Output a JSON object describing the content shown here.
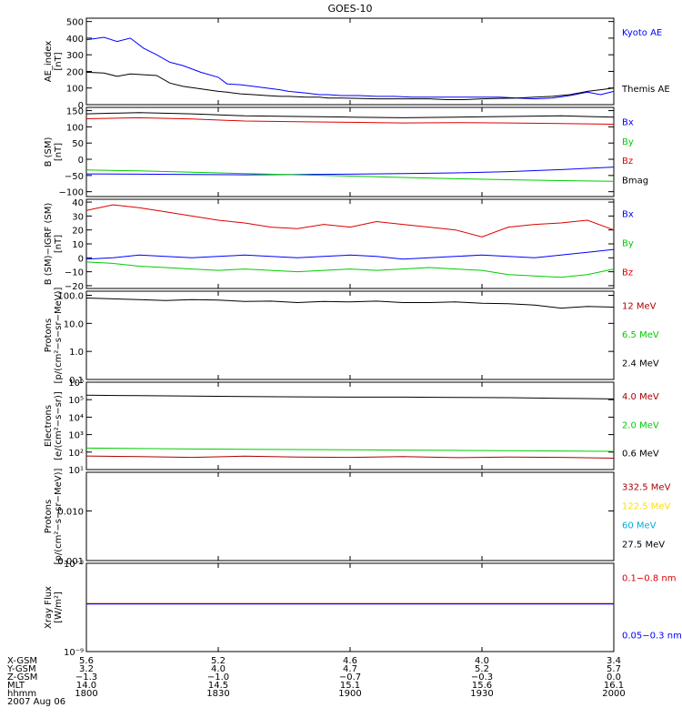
{
  "chart_data": [
    {
      "type": "line",
      "title": "GOES-10",
      "ylabel": [
        "AE_index",
        "[nT]"
      ],
      "ylim": [
        0,
        520
      ],
      "yticks": [
        0,
        100,
        200,
        300,
        400,
        500
      ],
      "ytick_labels": [
        "0",
        "100",
        "200",
        "300",
        "400",
        "500"
      ],
      "series": [
        {
          "name": "Kyoto AE",
          "color": "#0000ff",
          "x": [
            0,
            4,
            7,
            10,
            13,
            16,
            19,
            22,
            26,
            30,
            32,
            35,
            38,
            41,
            44,
            46,
            50,
            53,
            55,
            58,
            62,
            66,
            70,
            74,
            78,
            82,
            86,
            90,
            94,
            98,
            102,
            106,
            110,
            114,
            117,
            120
          ],
          "y": [
            390,
            405,
            380,
            400,
            340,
            300,
            255,
            235,
            195,
            165,
            125,
            120,
            110,
            100,
            90,
            80,
            70,
            60,
            60,
            55,
            55,
            50,
            50,
            45,
            45,
            45,
            45,
            45,
            45,
            40,
            35,
            40,
            55,
            75,
            60,
            80
          ]
        },
        {
          "name": "Themis AE",
          "color": "#000000",
          "x": [
            0,
            4,
            7,
            10,
            13,
            16,
            19,
            22,
            26,
            30,
            32,
            35,
            38,
            41,
            44,
            46,
            50,
            53,
            55,
            58,
            62,
            66,
            70,
            74,
            78,
            82,
            86,
            90,
            94,
            98,
            102,
            106,
            110,
            114,
            117,
            120
          ],
          "y": [
            195,
            190,
            170,
            185,
            180,
            175,
            130,
            110,
            95,
            80,
            75,
            65,
            60,
            55,
            50,
            50,
            45,
            45,
            40,
            40,
            38,
            35,
            35,
            35,
            35,
            30,
            30,
            35,
            38,
            40,
            45,
            50,
            60,
            80,
            90,
            100
          ]
        }
      ]
    },
    {
      "type": "line",
      "ylabel": [
        "B (SM)",
        "[nT]"
      ],
      "ylim": [
        -115,
        160
      ],
      "yticks": [
        -100,
        -50,
        0,
        50,
        100,
        150
      ],
      "ytick_labels": [
        "−100",
        "−50",
        "0",
        "50",
        "100",
        "150"
      ],
      "series": [
        {
          "name": "Bx",
          "color": "#0000ff",
          "x": [
            0,
            20,
            40,
            60,
            80,
            100,
            120,
            140,
            160,
            180,
            200
          ],
          "y": [
            -45,
            -46,
            -47,
            -48,
            -47,
            -46,
            -44,
            -42,
            -38,
            -32,
            -24
          ]
        },
        {
          "name": "By",
          "color": "#00cc00",
          "x": [
            0,
            20,
            40,
            60,
            80,
            100,
            120,
            140,
            160,
            180,
            200
          ],
          "y": [
            -33,
            -36,
            -40,
            -44,
            -48,
            -52,
            -56,
            -60,
            -63,
            -66,
            -68
          ]
        },
        {
          "name": "Bz",
          "color": "#dd0000",
          "x": [
            0,
            20,
            40,
            60,
            80,
            100,
            120,
            140,
            160,
            180,
            200
          ],
          "y": [
            125,
            128,
            124,
            118,
            116,
            114,
            112,
            113,
            112,
            110,
            108
          ]
        },
        {
          "name": "Bmag",
          "color": "#000000",
          "x": [
            0,
            20,
            40,
            60,
            80,
            100,
            120,
            140,
            160,
            180,
            200
          ],
          "y": [
            140,
            144,
            140,
            134,
            132,
            130,
            128,
            130,
            132,
            134,
            130
          ]
        }
      ]
    },
    {
      "type": "line",
      "ylabel": [
        "B (SM)−IGRF (SM)",
        "[nT]"
      ],
      "ylim": [
        -22,
        42
      ],
      "yticks": [
        -20,
        -10,
        0,
        10,
        20,
        30,
        40
      ],
      "ytick_labels": [
        "−20",
        "−10",
        "0",
        "10",
        "20",
        "30",
        "40"
      ],
      "series": [
        {
          "name": "Bx",
          "color": "#0000ff",
          "x": [
            0,
            10,
            20,
            30,
            40,
            50,
            60,
            70,
            80,
            90,
            100,
            110,
            120,
            130,
            140,
            150,
            160,
            170,
            180,
            190,
            200
          ],
          "y": [
            -1,
            0,
            2,
            1,
            0,
            1,
            2,
            1,
            0,
            1,
            2,
            1,
            -1,
            0,
            1,
            2,
            1,
            0,
            2,
            4,
            6
          ]
        },
        {
          "name": "By",
          "color": "#00cc00",
          "x": [
            0,
            10,
            20,
            30,
            40,
            50,
            60,
            70,
            80,
            90,
            100,
            110,
            120,
            130,
            140,
            150,
            160,
            170,
            180,
            190,
            200
          ],
          "y": [
            -3,
            -4,
            -6,
            -7,
            -8,
            -9,
            -8,
            -9,
            -10,
            -9,
            -8,
            -9,
            -8,
            -7,
            -8,
            -9,
            -12,
            -13,
            -14,
            -12,
            -8
          ]
        },
        {
          "name": "Bz",
          "color": "#dd0000",
          "x": [
            0,
            10,
            20,
            30,
            40,
            50,
            60,
            70,
            80,
            90,
            100,
            110,
            120,
            130,
            140,
            150,
            160,
            170,
            180,
            190,
            200
          ],
          "y": [
            34,
            38,
            36,
            33,
            30,
            27,
            25,
            22,
            21,
            24,
            22,
            26,
            24,
            22,
            20,
            15,
            22,
            24,
            25,
            27,
            20
          ]
        }
      ]
    },
    {
      "type": "line",
      "yscale": "log",
      "ylabel": [
        "Protons",
        "[p/(cm²−s−sr−MeV)]"
      ],
      "ylim": [
        0.1,
        140
      ],
      "yticks": [
        0.1,
        1,
        10,
        100
      ],
      "ytick_labels": [
        "0.1",
        "1.0",
        "10.0",
        "100.0"
      ],
      "series": [
        {
          "name": "12 MeV",
          "color": "#aa0000",
          "x": [],
          "y": []
        },
        {
          "name": "6.5 MeV",
          "color": "#00cc00",
          "x": [],
          "y": []
        },
        {
          "name": "2.4 MeV",
          "color": "#000000",
          "x": [
            0,
            10,
            20,
            30,
            40,
            50,
            60,
            70,
            80,
            90,
            100,
            110,
            120,
            130,
            140,
            150,
            160,
            170,
            180,
            190,
            200
          ],
          "y": [
            80,
            75,
            70,
            65,
            70,
            68,
            60,
            62,
            55,
            60,
            58,
            62,
            55,
            55,
            58,
            52,
            50,
            45,
            35,
            40,
            38
          ]
        }
      ]
    },
    {
      "type": "line",
      "yscale": "log",
      "ylabel": [
        "Electrons",
        "[e/(cm²−s−sr)]"
      ],
      "ylim": [
        10,
        1000000
      ],
      "yticks": [
        10,
        100,
        1000,
        10000,
        100000,
        1000000
      ],
      "ytick_labels": [
        "10¹",
        "10²",
        "10³",
        "10⁴",
        "10⁵",
        "10⁶"
      ],
      "series": [
        {
          "name": "4.0 MeV",
          "color": "#aa0000",
          "x": [
            0,
            20,
            40,
            60,
            80,
            100,
            120,
            140,
            160,
            180,
            200
          ],
          "y": [
            60,
            55,
            50,
            58,
            52,
            50,
            55,
            48,
            52,
            50,
            45
          ]
        },
        {
          "name": "2.0 MeV",
          "color": "#00cc00",
          "x": [
            0,
            20,
            40,
            60,
            80,
            100,
            120,
            140,
            160,
            180,
            200
          ],
          "y": [
            170,
            160,
            150,
            145,
            140,
            135,
            130,
            125,
            120,
            115,
            110
          ]
        },
        {
          "name": "0.6 MeV",
          "color": "#000000",
          "x": [
            0,
            20,
            40,
            60,
            80,
            100,
            120,
            140,
            160,
            180,
            200
          ],
          "y": [
            180000,
            170000,
            160000,
            150000,
            145000,
            140000,
            140000,
            135000,
            130000,
            120000,
            110000
          ]
        }
      ]
    },
    {
      "type": "line",
      "yscale": "log",
      "ylabel": [
        "Protons",
        "[p/(cm²−s−sr−MeV)]"
      ],
      "ylim": [
        0.001,
        0.06
      ],
      "yticks": [
        0.001,
        0.01
      ],
      "ytick_labels": [
        "0.001",
        "0.010"
      ],
      "series": [
        {
          "name": "332.5 MeV",
          "color": "#aa0000",
          "x": [],
          "y": []
        },
        {
          "name": "122.5 MeV",
          "color": "#ffdd00",
          "x": [],
          "y": []
        },
        {
          "name": "60 MeV",
          "color": "#00aadd",
          "x": [],
          "y": []
        },
        {
          "name": "27.5 MeV",
          "color": "#000000",
          "x": [],
          "y": []
        }
      ]
    },
    {
      "type": "line",
      "yscale": "log",
      "ylabel": [
        "Xray Flux",
        "[W/m²]"
      ],
      "ylim": [
        1e-09,
        1e-08
      ],
      "yticks": [
        1e-09,
        1e-08
      ],
      "ytick_labels": [
        "10⁻⁹",
        "10⁻⁸"
      ],
      "series": [
        {
          "name": "0.1−0.8 nm",
          "color": "#dd0000",
          "x": [
            0,
            200
          ],
          "y": [
            3.5e-09,
            3.5e-09
          ]
        },
        {
          "name": "0.05−0.3 nm",
          "color": "#0000ff",
          "x": [
            0,
            200
          ],
          "y": [
            3.45e-09,
            3.45e-09
          ]
        }
      ]
    }
  ],
  "footer": {
    "date": "2007 Aug 06",
    "rows": [
      {
        "label": "X-GSM",
        "values": [
          "5.6",
          "5.2",
          "4.6",
          "4.0",
          "3.4"
        ]
      },
      {
        "label": "Y-GSM",
        "values": [
          "3.2",
          "4.0",
          "4.7",
          "5.2",
          "5.7"
        ]
      },
      {
        "label": "Z-GSM",
        "values": [
          "−1.3",
          "−1.0",
          "−0.7",
          "−0.3",
          "0.0"
        ]
      },
      {
        "label": "MLT",
        "values": [
          "14.0",
          "14.5",
          "15.1",
          "15.6",
          "16.1"
        ]
      },
      {
        "label": "hhmm",
        "values": [
          "1800",
          "1830",
          "1900",
          "1930",
          "2000"
        ]
      }
    ]
  }
}
